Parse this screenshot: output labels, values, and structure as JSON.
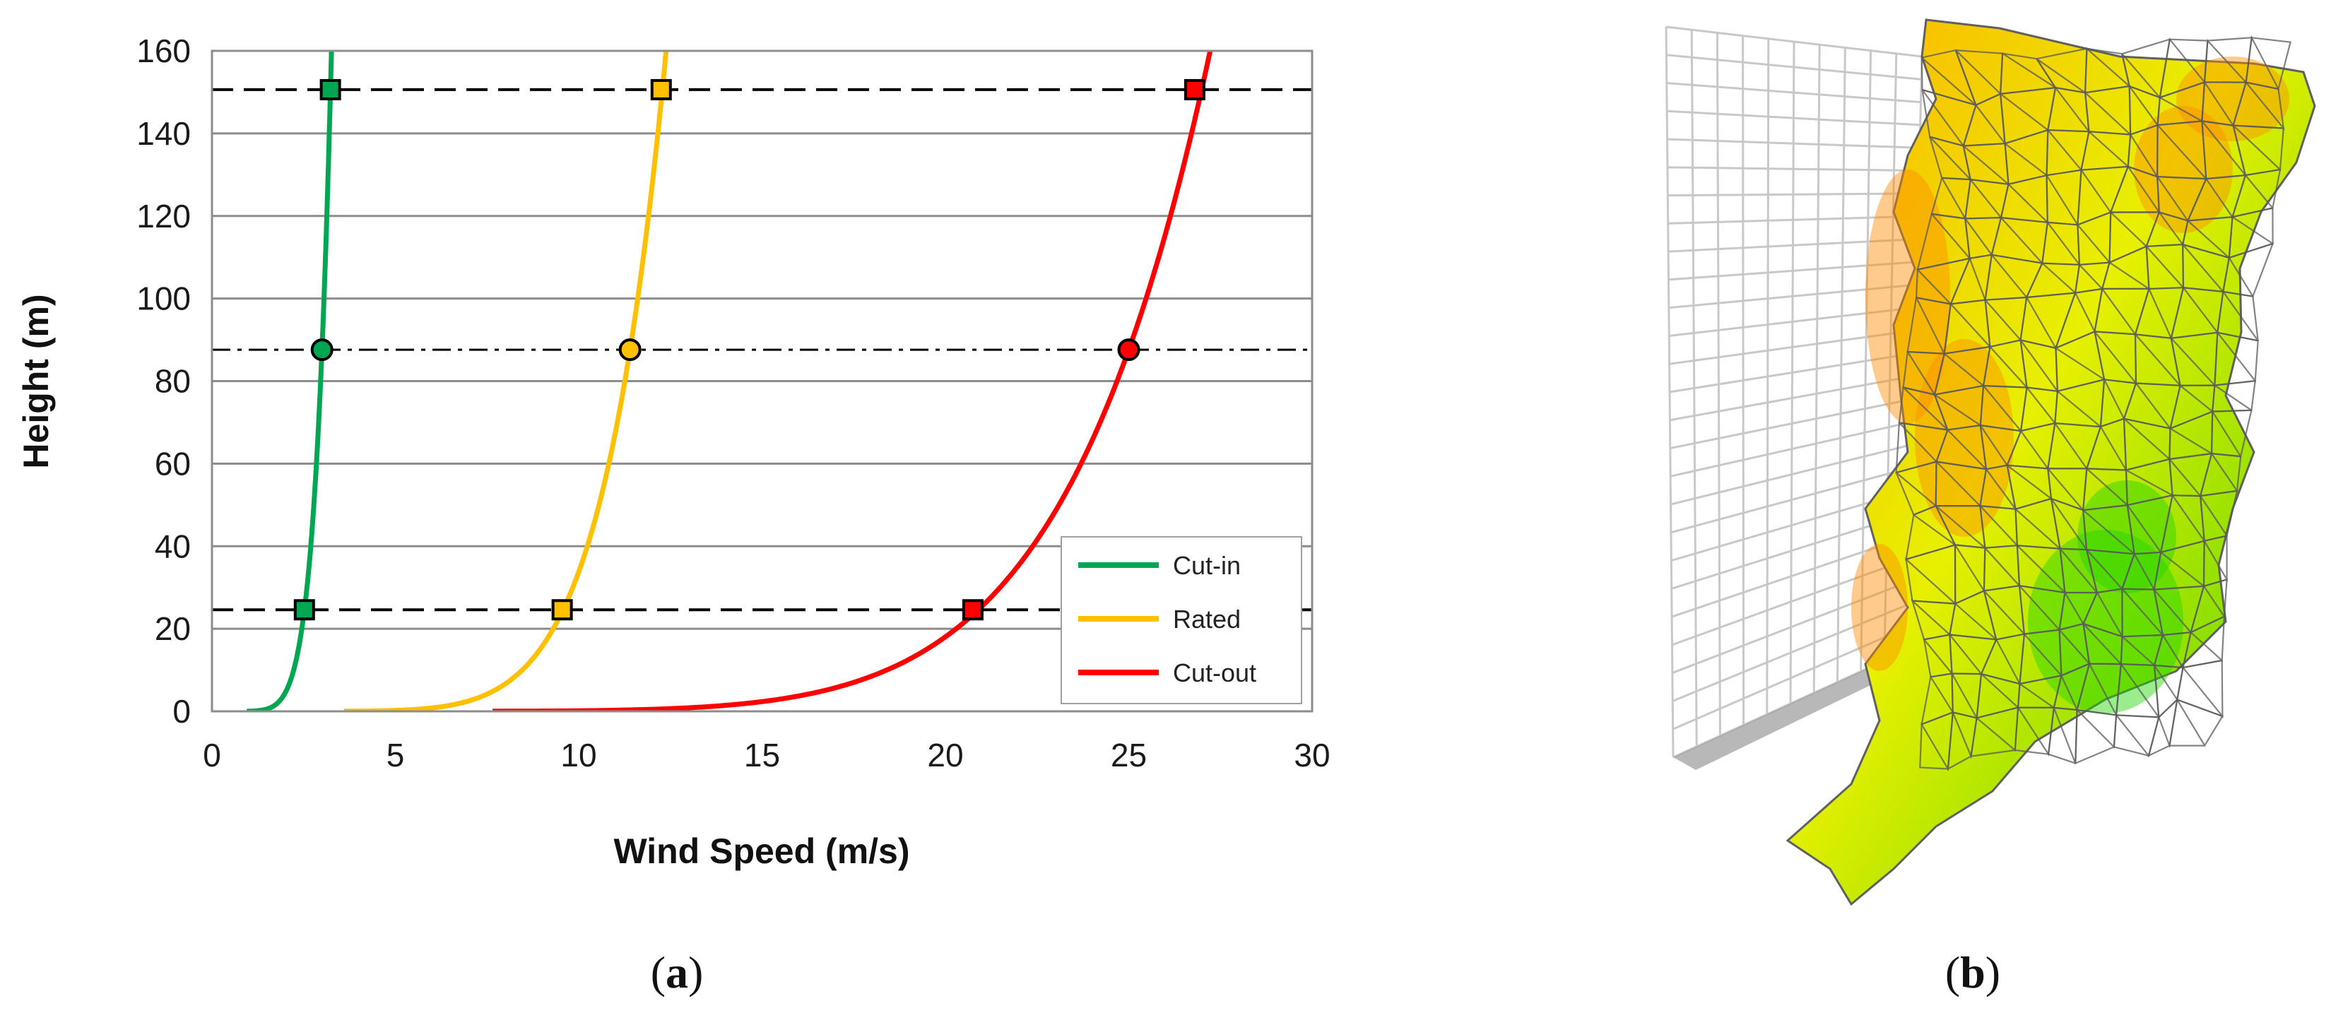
{
  "chart_data": {
    "type": "line",
    "xlabel": "Wind Speed (m/s)",
    "ylabel": "Height (m)",
    "xlim": [
      0,
      30
    ],
    "ylim": [
      0,
      160
    ],
    "xticks": [
      0,
      5,
      10,
      15,
      20,
      25,
      30
    ],
    "yticks": [
      0,
      20,
      40,
      60,
      80,
      100,
      120,
      140,
      160
    ],
    "grid": "horizontal",
    "legend_position": "bottom-right",
    "hub_height": 87.6,
    "rotor_bottom": 24.6,
    "rotor_top": 150.6,
    "series": [
      {
        "name": "Cut-in",
        "color": "#00a651",
        "hub_speed": 3.0,
        "markers": [
          {
            "x": 2.52,
            "y": 24.6,
            "shape": "square"
          },
          {
            "x": 3.0,
            "y": 87.6,
            "shape": "circle"
          },
          {
            "x": 3.23,
            "y": 150.6,
            "shape": "square"
          }
        ]
      },
      {
        "name": "Rated",
        "color": "#ffc000",
        "hub_speed": 11.4,
        "markers": [
          {
            "x": 9.55,
            "y": 24.6,
            "shape": "square"
          },
          {
            "x": 11.4,
            "y": 87.6,
            "shape": "circle"
          },
          {
            "x": 12.25,
            "y": 150.6,
            "shape": "square"
          }
        ]
      },
      {
        "name": "Cut-out",
        "color": "#ff0000",
        "hub_speed": 25.0,
        "markers": [
          {
            "x": 20.75,
            "y": 24.6,
            "shape": "square"
          },
          {
            "x": 25.0,
            "y": 87.6,
            "shape": "circle"
          },
          {
            "x": 26.8,
            "y": 150.6,
            "shape": "square"
          }
        ]
      }
    ]
  },
  "labels": {
    "panel_a": "a",
    "panel_b": "b",
    "paren_open": "(",
    "paren_close": ")"
  },
  "mesh": {
    "description_icon": "wind-field-mesh",
    "color_low": "#44e000",
    "color_mid": "#ffe600",
    "color_high": "#ff4000",
    "grid_color": "#c8c8c8"
  }
}
